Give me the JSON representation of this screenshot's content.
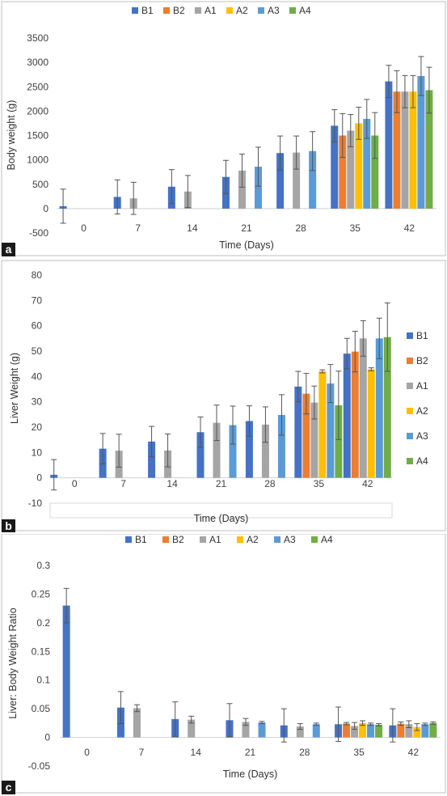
{
  "colors": {
    "B1": "#4472C4",
    "B2": "#ED7D31",
    "A1": "#A5A5A5",
    "A2": "#FFC000",
    "A3": "#5B9BD5",
    "A4": "#70AD47",
    "error": "#555555",
    "zero_line": "#d0d0d0",
    "border": "#bfbfbf"
  },
  "chart_data": [
    {
      "type": "bar",
      "panel": "a",
      "xlabel": "Time (Days)",
      "ylabel": "Body weight (g)",
      "ylim": [
        -500,
        3500
      ],
      "yticks": [
        "3500",
        "3000",
        "2500",
        "2000",
        "1500",
        "1000",
        "500",
        "0",
        "-500"
      ],
      "categories": [
        "0",
        "7",
        "14",
        "21",
        "28",
        "35",
        "42"
      ],
      "legend_position": "top",
      "series": [
        {
          "name": "B1",
          "values": [
            50,
            240,
            450,
            650,
            1140,
            1700,
            2610
          ],
          "errors": [
            350,
            350,
            350,
            340,
            350,
            330,
            330
          ]
        },
        {
          "name": "B2",
          "values": [
            null,
            null,
            null,
            null,
            null,
            1500,
            2400
          ],
          "errors": [
            null,
            null,
            null,
            null,
            null,
            450,
            430
          ]
        },
        {
          "name": "A1",
          "values": [
            null,
            210,
            350,
            780,
            1150,
            1600,
            2400
          ],
          "errors": [
            null,
            330,
            330,
            340,
            340,
            330,
            330
          ]
        },
        {
          "name": "A2",
          "values": [
            null,
            null,
            null,
            null,
            null,
            1750,
            2400
          ],
          "errors": [
            null,
            null,
            null,
            null,
            null,
            330,
            330
          ]
        },
        {
          "name": "A3",
          "values": [
            null,
            null,
            null,
            860,
            1180,
            1840,
            2720
          ],
          "errors": [
            null,
            null,
            null,
            400,
            400,
            400,
            400
          ]
        },
        {
          "name": "A4",
          "values": [
            null,
            null,
            null,
            null,
            null,
            1500,
            2430
          ],
          "errors": [
            null,
            null,
            null,
            null,
            null,
            470,
            470
          ]
        }
      ]
    },
    {
      "type": "bar",
      "panel": "b",
      "xlabel": "Time (Days)",
      "ylabel": "Liver Weight (g)",
      "ylim": [
        -10,
        80
      ],
      "yticks": [
        "80",
        "70",
        "60",
        "50",
        "40",
        "30",
        "20",
        "10",
        "0",
        "-10"
      ],
      "categories": [
        "0",
        "7",
        "14",
        "21",
        "28",
        "35",
        "42"
      ],
      "legend_position": "right",
      "series": [
        {
          "name": "B1",
          "values": [
            1.2,
            11.5,
            14.3,
            18,
            22.4,
            36,
            49
          ],
          "errors": [
            6,
            6,
            6,
            6,
            6,
            6,
            6
          ]
        },
        {
          "name": "B2",
          "values": [
            null,
            null,
            null,
            null,
            null,
            33.2,
            49.8
          ],
          "errors": [
            null,
            null,
            null,
            null,
            null,
            8,
            8
          ]
        },
        {
          "name": "A1",
          "values": [
            null,
            10.7,
            10.8,
            21.7,
            21,
            29.7,
            55
          ],
          "errors": [
            null,
            6.5,
            6.5,
            7,
            7,
            6.5,
            7
          ]
        },
        {
          "name": "A2",
          "values": [
            null,
            null,
            null,
            null,
            null,
            42,
            42.8
          ],
          "errors": [
            null,
            null,
            null,
            null,
            null,
            0.6,
            0.6
          ]
        },
        {
          "name": "A3",
          "values": [
            null,
            null,
            null,
            20.8,
            24.8,
            37.2,
            55
          ],
          "errors": [
            null,
            null,
            null,
            7.5,
            8,
            7.5,
            8
          ]
        },
        {
          "name": "A4",
          "values": [
            null,
            null,
            null,
            null,
            null,
            28.6,
            55.5
          ],
          "errors": [
            null,
            null,
            null,
            null,
            null,
            13.5,
            13.5
          ]
        }
      ]
    },
    {
      "type": "bar",
      "panel": "c",
      "xlabel": "Time (Days)",
      "ylabel": "Liver: Body Weight Ratio",
      "ylim": [
        -0.05,
        0.3
      ],
      "yticks": [
        "0.3",
        "0.25",
        "0.2",
        "0.15",
        "0.1",
        "0.05",
        "0",
        "-0.05"
      ],
      "categories": [
        "0",
        "7",
        "14",
        "21",
        "28",
        "35",
        "42"
      ],
      "legend_position": "top",
      "series": [
        {
          "name": "B1",
          "values": [
            0.23,
            0.052,
            0.032,
            0.03,
            0.021,
            0.023,
            0.021
          ],
          "errors": [
            0.03,
            0.028,
            0.03,
            0.029,
            0.029,
            0.03,
            0.029
          ]
        },
        {
          "name": "B2",
          "values": [
            null,
            null,
            null,
            null,
            null,
            0.024,
            0.024
          ],
          "errors": [
            null,
            null,
            null,
            null,
            null,
            0.002,
            0.003
          ]
        },
        {
          "name": "A1",
          "values": [
            null,
            0.051,
            0.031,
            0.027,
            0.019,
            0.02,
            0.023
          ],
          "errors": [
            null,
            0.006,
            0.006,
            0.006,
            0.005,
            0.006,
            0.006
          ]
        },
        {
          "name": "A2",
          "values": [
            null,
            null,
            null,
            null,
            null,
            0.025,
            0.018
          ],
          "errors": [
            null,
            null,
            null,
            null,
            null,
            0.004,
            0.006
          ]
        },
        {
          "name": "A3",
          "values": [
            null,
            null,
            null,
            0.026,
            0.023,
            0.023,
            0.023
          ],
          "errors": [
            null,
            null,
            null,
            0.002,
            0.002,
            0.002,
            0.002
          ]
        },
        {
          "name": "A4",
          "values": [
            null,
            null,
            null,
            null,
            null,
            0.022,
            0.025
          ],
          "errors": [
            null,
            null,
            null,
            null,
            null,
            0.002,
            0.002
          ]
        }
      ]
    }
  ]
}
